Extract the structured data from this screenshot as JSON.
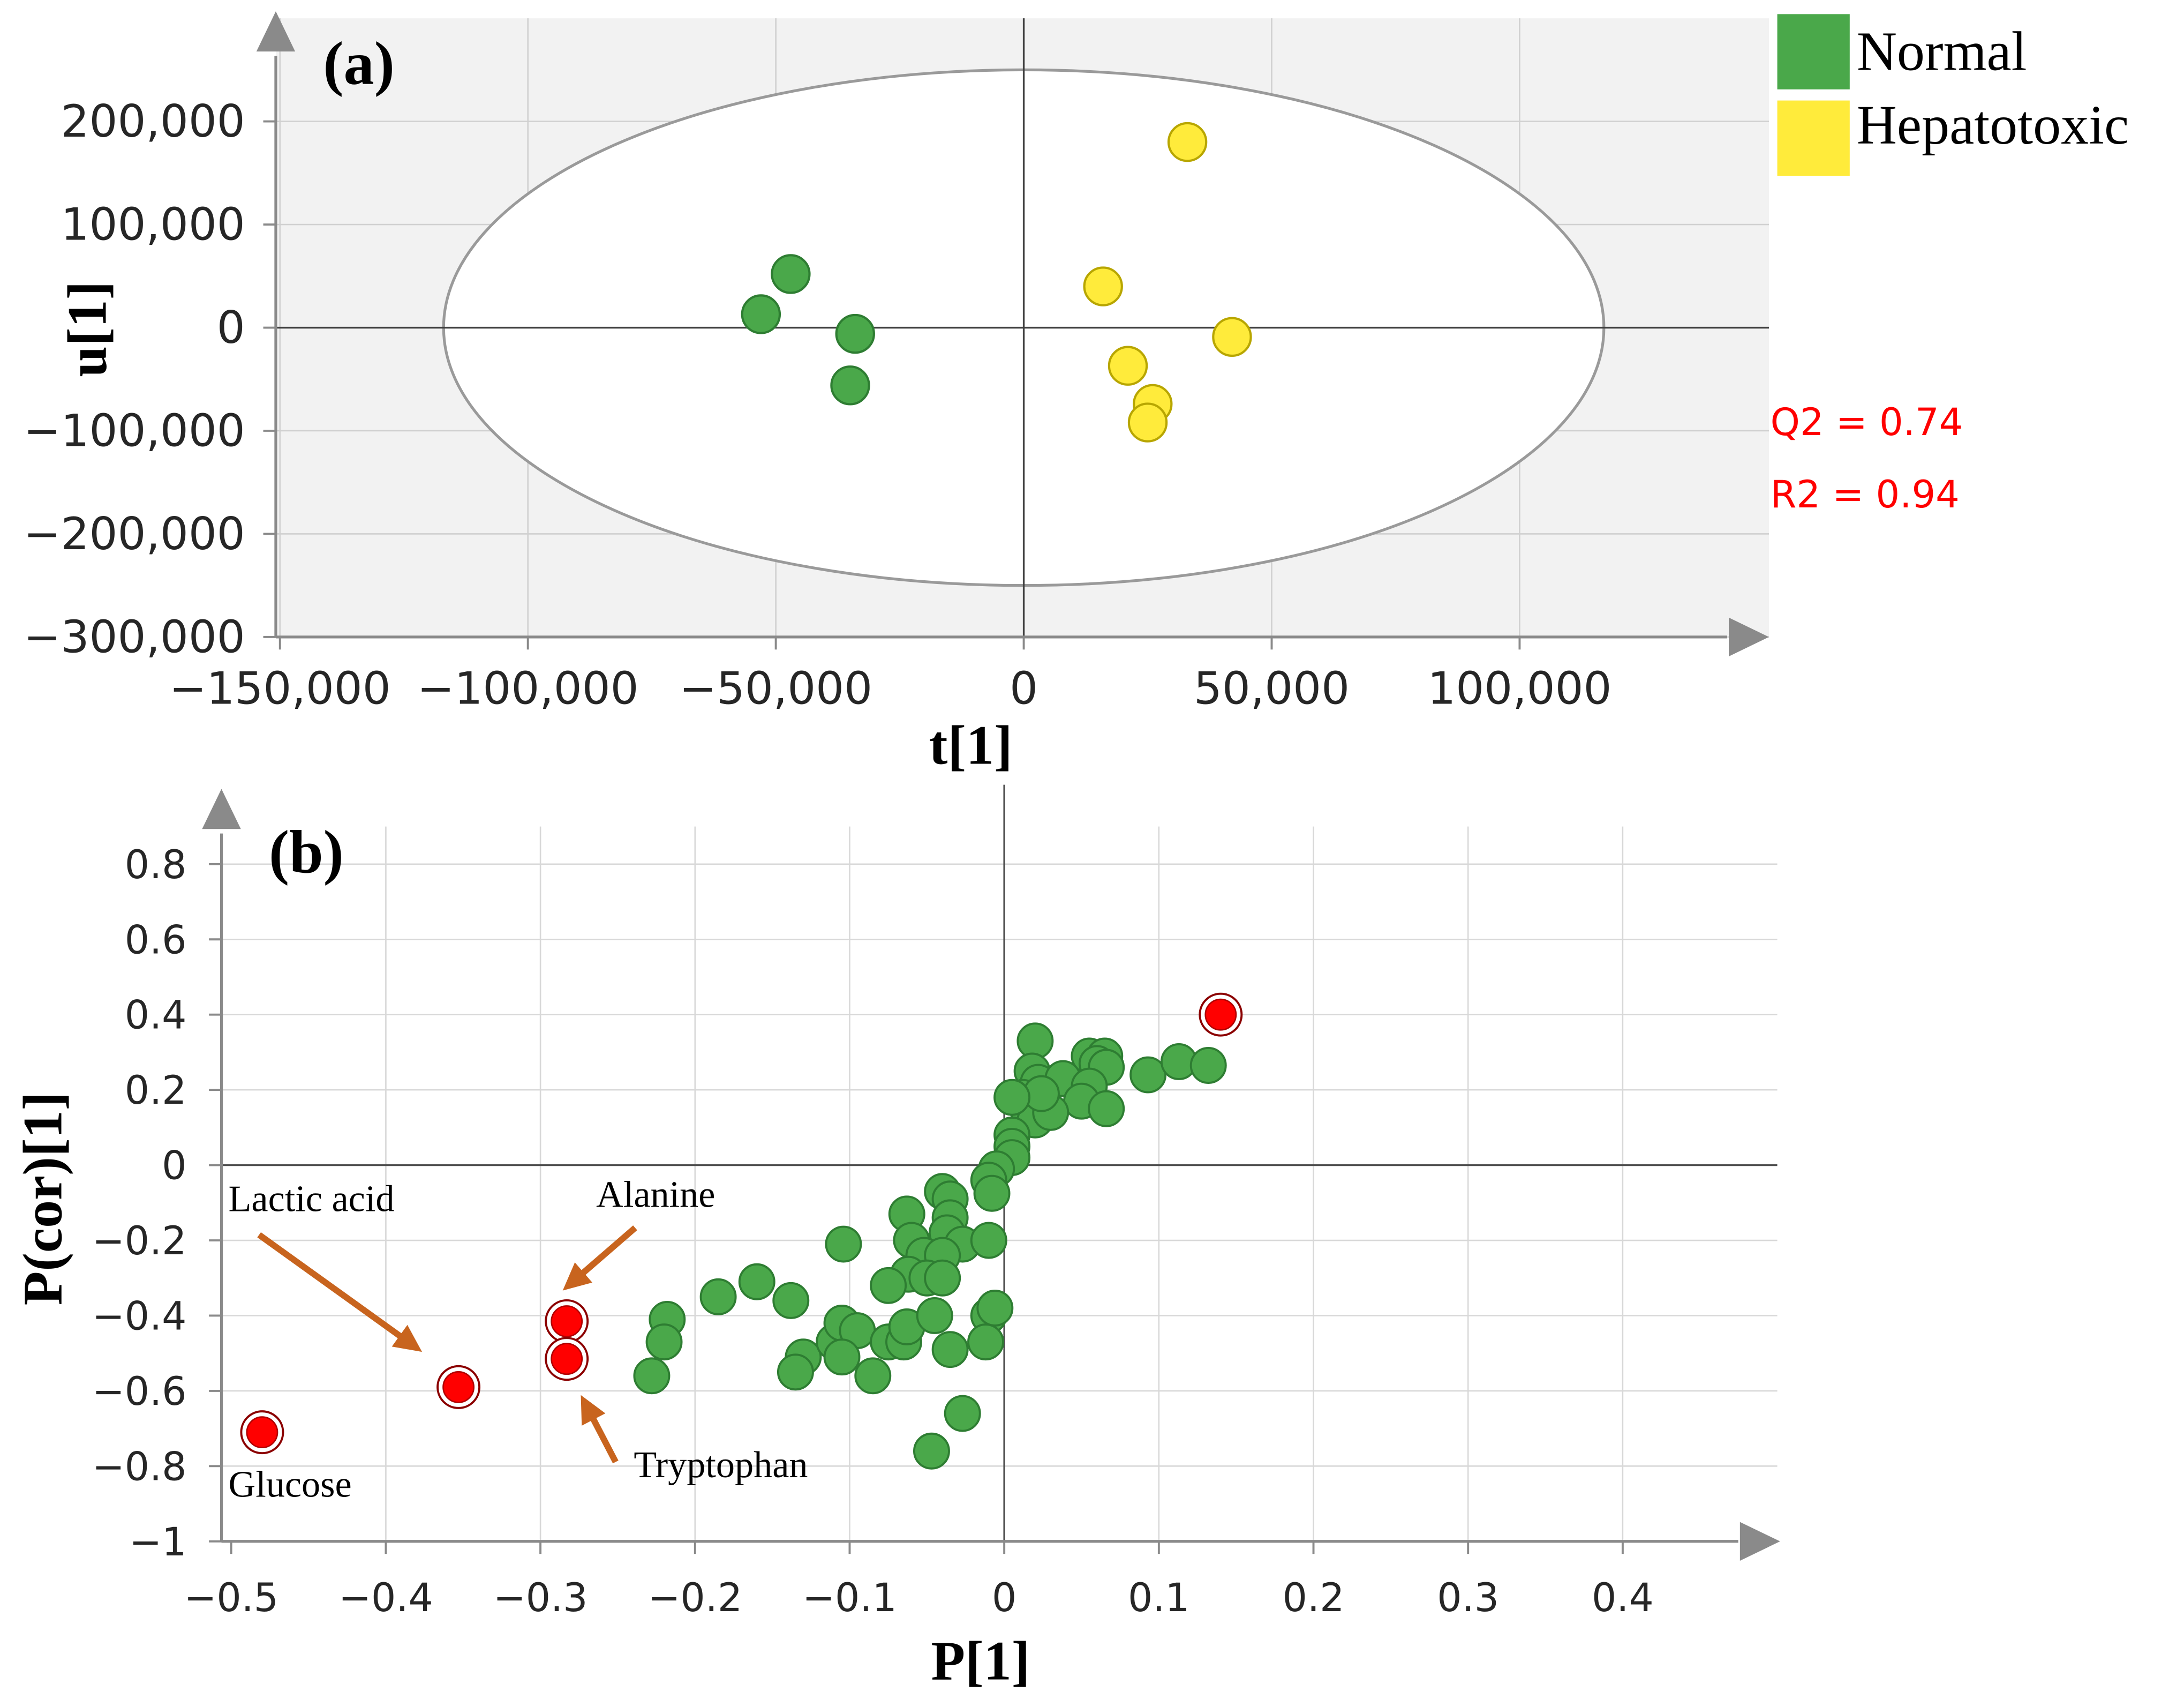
{
  "chart_data": [
    {
      "panel_label": "(a)",
      "type": "scatter",
      "title": "",
      "xlabel": "t[1]",
      "ylabel": "u[1]",
      "xlim": [
        -150000,
        150000
      ],
      "ylim": [
        -300000,
        300000
      ],
      "x_ticks": [
        -150000,
        -100000,
        -50000,
        0,
        50000,
        100000
      ],
      "x_tick_labels": [
        "−150,000",
        "−100,000",
        "−50,000",
        "0",
        "50,000",
        "100,000"
      ],
      "y_ticks": [
        -300000,
        -200000,
        -100000,
        0,
        100000,
        200000
      ],
      "y_tick_labels": [
        "−300,000",
        "−200,000",
        "−100,000",
        "0",
        "100,000",
        "200,000"
      ],
      "grid": true,
      "legend_position": "top-right, outside plot",
      "ellipse": {
        "center": [
          0,
          0
        ],
        "semi_axis_x": 117000,
        "semi_axis_y": 250000
      },
      "series": [
        {
          "name": "Normal",
          "color": "#4aa84a",
          "points": [
            [
              -47000,
              52000
            ],
            [
              -53000,
              13000
            ],
            [
              -34000,
              -6000
            ],
            [
              -35000,
              -56000
            ]
          ]
        },
        {
          "name": "Hepatotoxic",
          "color": "#ffeb3b",
          "points": [
            [
              33000,
              180000
            ],
            [
              16000,
              40000
            ],
            [
              42000,
              -9000
            ],
            [
              21000,
              -37000
            ],
            [
              26000,
              -74000
            ],
            [
              25000,
              -92000
            ]
          ]
        }
      ],
      "annotations": [
        "Q2 = 0.74",
        "R2 = 0.94"
      ]
    },
    {
      "panel_label": "(b)",
      "type": "scatter",
      "title": "",
      "xlabel": "P[1]",
      "ylabel": "P(cor)[1]",
      "xlim": [
        -0.5,
        0.5
      ],
      "ylim": [
        -1,
        1
      ],
      "x_ticks": [
        -0.5,
        -0.4,
        -0.3,
        -0.2,
        -0.1,
        0,
        0.1,
        0.2,
        0.3,
        0.4
      ],
      "x_tick_labels": [
        "−0.5",
        "−0.4",
        "−0.3",
        "−0.2",
        "−0.1",
        "0",
        "0.1",
        "0.2",
        "0.3",
        "0.4"
      ],
      "y_ticks": [
        -1,
        -0.8,
        -0.6,
        -0.4,
        -0.2,
        0,
        0.2,
        0.4,
        0.6,
        0.8
      ],
      "y_tick_labels": [
        "−1",
        "−0.8",
        "−0.6",
        "−0.4",
        "−0.2",
        "0",
        "0.2",
        "0.4",
        "0.6",
        "0.8"
      ],
      "grid": true,
      "series": [
        {
          "color": "#4aa84a",
          "points": [
            [
              0.02,
              0.33
            ],
            [
              0.055,
              0.29
            ],
            [
              0.065,
              0.29
            ],
            [
              0.06,
              0.27
            ],
            [
              0.066,
              0.26
            ],
            [
              0.093,
              0.24
            ],
            [
              0.113,
              0.275
            ],
            [
              0.132,
              0.265
            ],
            [
              0.018,
              0.25
            ],
            [
              0.022,
              0.22
            ],
            [
              0.038,
              0.23
            ],
            [
              0.055,
              0.21
            ],
            [
              0.012,
              0.18
            ],
            [
              0.05,
              0.17
            ],
            [
              0.015,
              0.15
            ],
            [
              0.02,
              0.12
            ],
            [
              0.03,
              0.14
            ],
            [
              0.066,
              0.15
            ],
            [
              0.024,
              0.19
            ],
            [
              0.005,
              0.18
            ],
            [
              0.005,
              0.08
            ],
            [
              0.005,
              0.05
            ],
            [
              0.005,
              0.02
            ],
            [
              -0.005,
              -0.01
            ],
            [
              -0.01,
              -0.04
            ],
            [
              -0.008,
              -0.075
            ],
            [
              -0.04,
              -0.07
            ],
            [
              -0.035,
              -0.09
            ],
            [
              -0.063,
              -0.13
            ],
            [
              -0.035,
              -0.14
            ],
            [
              -0.06,
              -0.2
            ],
            [
              -0.037,
              -0.18
            ],
            [
              -0.027,
              -0.21
            ],
            [
              -0.01,
              -0.2
            ],
            [
              -0.052,
              -0.24
            ],
            [
              -0.04,
              -0.24
            ],
            [
              -0.062,
              -0.29
            ],
            [
              -0.05,
              -0.3
            ],
            [
              -0.04,
              -0.3
            ],
            [
              -0.075,
              -0.32
            ],
            [
              -0.104,
              -0.21
            ],
            [
              -0.16,
              -0.31
            ],
            [
              -0.185,
              -0.35
            ],
            [
              -0.138,
              -0.36
            ],
            [
              -0.218,
              -0.41
            ],
            [
              -0.22,
              -0.47
            ],
            [
              -0.228,
              -0.56
            ],
            [
              -0.13,
              -0.51
            ],
            [
              -0.135,
              -0.55
            ],
            [
              -0.11,
              -0.47
            ],
            [
              -0.105,
              -0.42
            ],
            [
              -0.095,
              -0.44
            ],
            [
              -0.105,
              -0.51
            ],
            [
              -0.085,
              -0.56
            ],
            [
              -0.075,
              -0.47
            ],
            [
              -0.065,
              -0.47
            ],
            [
              -0.063,
              -0.43
            ],
            [
              -0.045,
              -0.4
            ],
            [
              -0.035,
              -0.49
            ],
            [
              -0.01,
              -0.4
            ],
            [
              -0.006,
              -0.38
            ],
            [
              -0.012,
              -0.47
            ],
            [
              -0.027,
              -0.66
            ],
            [
              -0.047,
              -0.76
            ]
          ]
        },
        {
          "color": "#ff0000",
          "points": [
            [
              0.14,
              0.4
            ],
            [
              -0.283,
              -0.415
            ],
            [
              -0.283,
              -0.515
            ],
            [
              -0.353,
              -0.59
            ],
            [
              -0.48,
              -0.71
            ]
          ]
        }
      ],
      "annotations": [
        {
          "text": "Lactic acid",
          "points_to": [
            -0.353,
            -0.59
          ]
        },
        {
          "text": "Alanine",
          "points_to": [
            -0.283,
            -0.415
          ]
        },
        {
          "text": "Tryptophan",
          "points_to": [
            -0.283,
            -0.515
          ]
        },
        {
          "text": "Glucose",
          "points_to": [
            -0.48,
            -0.71
          ]
        }
      ]
    }
  ]
}
